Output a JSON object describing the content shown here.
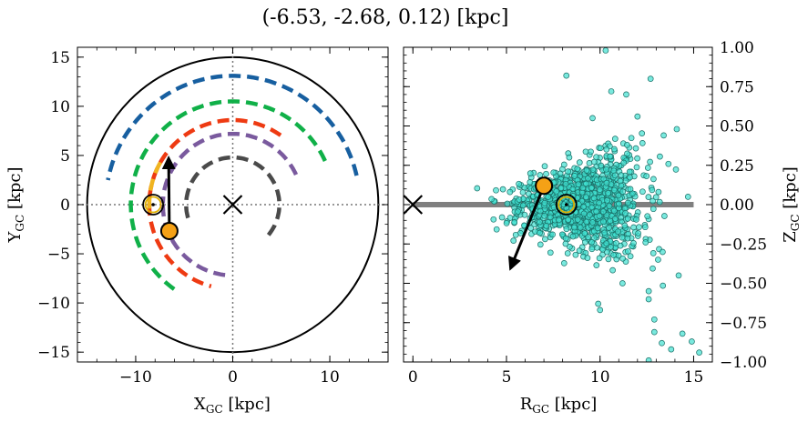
{
  "figure_title": "(-6.53, -2.68, 0.12) [kpc]",
  "chart_data": [
    {
      "type": "scatter",
      "panel": "left",
      "xlabel": "X",
      "xlabel_sub": "GC",
      "xlabel_unit": " [kpc]",
      "ylabel": "Y",
      "ylabel_sub": "GC",
      "ylabel_unit": " [kpc]",
      "xlim": [
        -16,
        16
      ],
      "ylim": [
        -16,
        16
      ],
      "xticks": [
        -10,
        0,
        10
      ],
      "yticks": [
        -15,
        -10,
        -5,
        0,
        5,
        10,
        15
      ],
      "xticklabels": [
        "−10",
        "0",
        "10"
      ],
      "yticklabels": [
        "−15",
        "−10",
        "−5",
        "0",
        "5",
        "10",
        "15"
      ],
      "galaxy_edge_radius": 15,
      "galactic_center": [
        0,
        0
      ],
      "sun_position": [
        -8.2,
        0
      ],
      "object_position": [
        -6.53,
        -2.68
      ],
      "velocity_arrow": {
        "from": [
          -6.53,
          -2.68
        ],
        "to": [
          -6.6,
          4.3
        ]
      },
      "spiral_arms": [
        {
          "color": "#4a4a4a",
          "radius": 4.8,
          "theta_deg": [
            -40,
            200
          ]
        },
        {
          "color": "#7a5a9e",
          "radius": 7.2,
          "theta_deg": [
            25,
            180
          ]
        },
        {
          "color": "#7a5a9e",
          "radius": 7.2,
          "theta_deg": [
            180,
            265
          ]
        },
        {
          "color": "#ee3a12",
          "radius": 8.6,
          "theta_deg": [
            55,
            255
          ]
        },
        {
          "color": "#10b048",
          "radius": 10.5,
          "theta_deg": [
            25,
            235
          ]
        },
        {
          "color": "#175fa0",
          "radius": 13.1,
          "theta_deg": [
            13,
            170
          ]
        },
        {
          "color": "#f0b420",
          "radius": 8.6,
          "theta_deg": [
            150,
            185
          ]
        }
      ]
    },
    {
      "type": "scatter",
      "panel": "right",
      "xlabel": "R",
      "xlabel_sub": "GC",
      "xlabel_unit": " [kpc]",
      "ylabel": "Z",
      "ylabel_sub": "GC",
      "ylabel_unit": " [kpc]",
      "xlim": [
        -0.5,
        16
      ],
      "ylim": [
        -1.0,
        1.0
      ],
      "xticks": [
        0,
        5,
        10,
        15
      ],
      "yticks": [
        -1.0,
        -0.75,
        -0.5,
        -0.25,
        0.0,
        0.25,
        0.5,
        0.75,
        1.0
      ],
      "xticklabels": [
        "0",
        "5",
        "10",
        "15"
      ],
      "yticklabels": [
        "−1.00",
        "−0.75",
        "−0.50",
        "−0.25",
        "0.00",
        "0.25",
        "0.50",
        "0.75",
        "1.00"
      ],
      "disk_line": {
        "x": [
          0,
          15
        ],
        "y": 0
      },
      "galactic_center": [
        0,
        0
      ],
      "sun_position": [
        8.2,
        0
      ],
      "object_position": [
        7.0,
        0.12
      ],
      "velocity_arrow": {
        "from": [
          7.0,
          0.12
        ],
        "to": [
          5.3,
          -0.38
        ]
      },
      "stars": {
        "count": 1400,
        "color": "#40e0d0",
        "edge_color": "#1a6e66",
        "r_center": 9.0,
        "r_spread": 1.6,
        "r_range": [
          3.0,
          15.2
        ],
        "z_spread": 0.09,
        "outliers": [
          [
            10.3,
            0.98
          ],
          [
            12.7,
            0.8
          ],
          [
            10.6,
            0.72
          ],
          [
            11.4,
            0.7
          ],
          [
            8.2,
            0.82
          ],
          [
            12.0,
            0.56
          ],
          [
            13.4,
            0.44
          ],
          [
            14.1,
            0.48
          ],
          [
            9.6,
            0.55
          ],
          [
            14.7,
            0.05
          ],
          [
            14.4,
            -0.82
          ],
          [
            14.9,
            -0.87
          ],
          [
            12.9,
            -0.81
          ],
          [
            13.3,
            -0.88
          ],
          [
            13.8,
            -0.92
          ],
          [
            15.3,
            -0.94
          ],
          [
            12.6,
            -0.99
          ],
          [
            10.0,
            -0.67
          ],
          [
            9.9,
            -0.63
          ],
          [
            12.9,
            -0.73
          ],
          [
            11.2,
            -0.5
          ],
          [
            12.6,
            -0.55
          ],
          [
            13.1,
            -0.35
          ],
          [
            14.2,
            -0.45
          ]
        ]
      }
    }
  ]
}
